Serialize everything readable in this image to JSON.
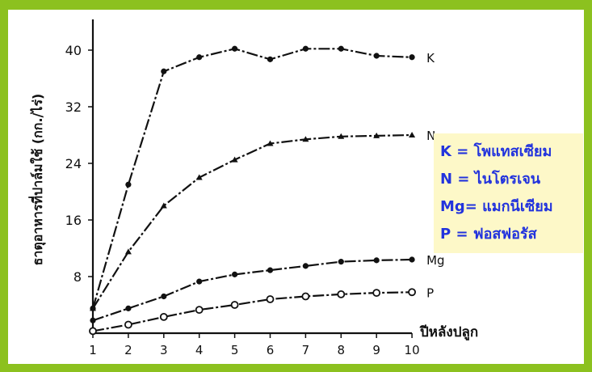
{
  "chart_data": {
    "type": "line",
    "xlabel": "ปีหลังปลูก",
    "ylabel": "ธาตุอาหารที่ปาล์มใช้ (กก./ไร่)",
    "x": [
      1,
      2,
      3,
      4,
      5,
      6,
      7,
      8,
      9,
      10
    ],
    "xlim": [
      1,
      10
    ],
    "ylim": [
      0,
      42
    ],
    "xticks": [
      "1",
      "2",
      "3",
      "4",
      "5",
      "6",
      "7",
      "8",
      "9",
      "10"
    ],
    "yticks": [
      "8",
      "16",
      "24",
      "32",
      "40"
    ],
    "grid": false,
    "series": [
      {
        "name": "K",
        "marker": "filled-circle",
        "values": [
          3.5,
          21,
          37,
          39,
          40.2,
          38.7,
          40.2,
          40.2,
          39.2,
          39.0
        ]
      },
      {
        "name": "N",
        "marker": "filled-triangle",
        "values": [
          3.5,
          11.5,
          18,
          22,
          24.5,
          26.8,
          27.4,
          27.8,
          27.9,
          28.0
        ]
      },
      {
        "name": "Mg",
        "marker": "filled-circle",
        "values": [
          1.8,
          3.5,
          5.2,
          7.3,
          8.3,
          8.9,
          9.5,
          10.1,
          10.3,
          10.4
        ]
      },
      {
        "name": "P",
        "marker": "open-circle",
        "values": [
          0.3,
          1.2,
          2.3,
          3.3,
          4.0,
          4.8,
          5.2,
          5.5,
          5.7,
          5.8
        ]
      }
    ],
    "legend": {
      "placement": "right",
      "items": [
        {
          "key": "K",
          "sep": " = ",
          "label": "โพแทสเซียม"
        },
        {
          "key": "N",
          "sep": " = ",
          "label": "ไนโตรเจน"
        },
        {
          "key": "Mg",
          "sep": "= ",
          "label": "แมกนีเซียม"
        },
        {
          "key": "P",
          "sep": "  = ",
          "label": "ฟอสฟอรัส"
        }
      ]
    },
    "colors": {
      "frame": "#8cc11f",
      "legend_bg": "#fdf8c8",
      "legend_text": "#2233dd",
      "ink": "#111111"
    }
  }
}
